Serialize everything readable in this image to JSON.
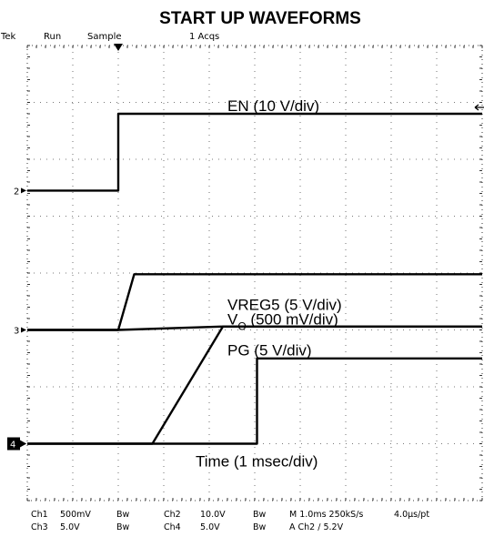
{
  "chart_data": {
    "type": "line",
    "title": "START UP WAVEFORMS",
    "header": {
      "brand": "Tek",
      "mode": "Run",
      "acq": "Sample",
      "acqs": "1 Acqs"
    },
    "footer": {
      "r1": [
        "Ch1",
        "500mV",
        "Bw",
        "Ch2",
        "10.0V",
        "Bw",
        "M 1.0ms 250kS/s",
        "4.0µs/pt"
      ],
      "r2": [
        "Ch3",
        "5.0V",
        "Bw",
        "Ch4",
        "5.0V",
        "Bw",
        "A  Ch2  ∕  5.2V"
      ]
    },
    "x_label": "Time (1 msec/div)",
    "xlim": [
      0,
      10
    ],
    "ylim": [
      0,
      8
    ],
    "series": [
      {
        "name": "EN (10 V/div)",
        "marker": "2",
        "color": "#000000",
        "points": [
          [
            0,
            5.45
          ],
          [
            2.0,
            5.45
          ],
          [
            2.0,
            6.8
          ],
          [
            10,
            6.8
          ]
        ]
      },
      {
        "name": "VREG5 (5 V/div)",
        "marker": "3",
        "color": "#000000",
        "points": [
          [
            0,
            3.0
          ],
          [
            2.0,
            3.0
          ],
          [
            2.35,
            3.98
          ],
          [
            10,
            3.98
          ]
        ]
      },
      {
        "name": "VO (500 mV/div)",
        "marker": "",
        "color": "#000000",
        "points": [
          [
            0,
            3.0
          ],
          [
            2.0,
            3.0
          ],
          [
            4.25,
            3.06
          ],
          [
            10,
            3.06
          ]
        ]
      },
      {
        "name": "PG (5 V/div)",
        "marker": "1",
        "color": "#000000",
        "points": [
          [
            0,
            1.0
          ],
          [
            2.75,
            1.0
          ],
          [
            4.3,
            3.06
          ],
          [
            10,
            3.06
          ]
        ]
      },
      {
        "name": "",
        "marker": "4",
        "color": "#000000",
        "points": [
          [
            0,
            1.0
          ],
          [
            5.05,
            1.0
          ],
          [
            5.05,
            2.5
          ],
          [
            10,
            2.5
          ]
        ]
      }
    ],
    "annotations": [
      {
        "text": "EN (10 V/div)",
        "x": 4.4,
        "y": 6.85
      },
      {
        "text": "VREG5 (5 V/div)",
        "x": 4.4,
        "y": 3.35
      },
      {
        "text": "V",
        "sub": "O",
        "rest": " (500 mV/div)",
        "x": 4.4,
        "y": 3.1
      },
      {
        "text": "PG (5 V/div)",
        "x": 4.4,
        "y": 2.55
      },
      {
        "text": "Time (1 msec/div)",
        "x": 3.7,
        "y": 0.6
      }
    ]
  }
}
